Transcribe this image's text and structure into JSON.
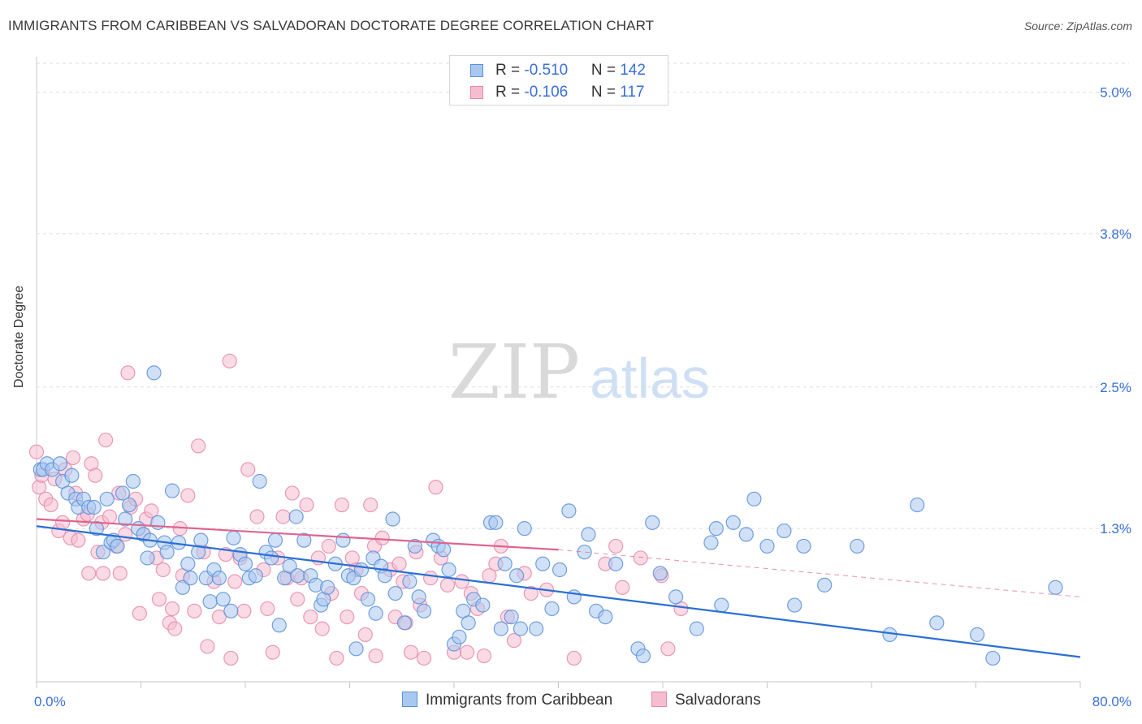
{
  "title": "IMMIGRANTS FROM CARIBBEAN VS SALVADORAN DOCTORATE DEGREE CORRELATION CHART",
  "source": "Source: ZipAtlas.com",
  "watermark": {
    "zip": "ZIP",
    "atlas": "atlas"
  },
  "legend": {
    "rows": [
      {
        "r_label": "R = ",
        "r_value": "-0.510",
        "n_label": "N = ",
        "n_value": "142"
      },
      {
        "r_label": "R = ",
        "r_value": "-0.106",
        "n_label": "N = ",
        "n_value": "117"
      }
    ]
  },
  "bottom_legend": {
    "series1": "Immigrants from Caribbean",
    "series2": "Salvadorans"
  },
  "colors": {
    "blue_fill": "#a9c8f0",
    "blue_stroke": "#5b8fd9",
    "blue_line": "#2a6fd6",
    "pink_fill": "#f6bcd0",
    "pink_stroke": "#e58aaa",
    "pink_line": "#e0648e",
    "axis_label": "#3a6fd8",
    "grid": "#dddddd"
  },
  "chart_data": {
    "type": "scatter",
    "title": "IMMIGRANTS FROM CARIBBEAN VS SALVADORAN DOCTORATE DEGREE CORRELATION CHART",
    "xlabel": "",
    "ylabel": "Doctorate Degree",
    "xlim": [
      0,
      80
    ],
    "ylim": [
      0,
      5.3
    ],
    "x_tick_labels": [
      "0.0%",
      "80.0%"
    ],
    "y_ticks": [
      1.3,
      2.5,
      3.8,
      5.0
    ],
    "y_tick_labels": [
      "1.3%",
      "2.5%",
      "3.8%",
      "5.0%"
    ],
    "series": [
      {
        "name": "Immigrants from Caribbean",
        "trend": {
          "x": [
            0,
            80
          ],
          "y": [
            1.32,
            0.21
          ]
        },
        "points": [
          [
            0.3,
            1.8
          ],
          [
            0.5,
            1.8
          ],
          [
            0.8,
            1.85
          ],
          [
            1.2,
            1.8
          ],
          [
            1.8,
            1.85
          ],
          [
            2,
            1.7
          ],
          [
            2.4,
            1.6
          ],
          [
            2.7,
            1.75
          ],
          [
            3,
            1.55
          ],
          [
            3.2,
            1.48
          ],
          [
            3.6,
            1.55
          ],
          [
            4,
            1.48
          ],
          [
            4.4,
            1.48
          ],
          [
            4.6,
            1.3
          ],
          [
            5.1,
            1.1
          ],
          [
            5.4,
            1.55
          ],
          [
            5.7,
            1.18
          ],
          [
            5.9,
            1.2
          ],
          [
            6.2,
            1.15
          ],
          [
            6.6,
            1.6
          ],
          [
            6.8,
            1.38
          ],
          [
            7.1,
            1.5
          ],
          [
            7.4,
            1.7
          ],
          [
            7.8,
            1.3
          ],
          [
            8.2,
            1.25
          ],
          [
            8.5,
            1.05
          ],
          [
            8.7,
            1.2
          ],
          [
            9,
            2.62
          ],
          [
            9.3,
            1.35
          ],
          [
            9.8,
            1.18
          ],
          [
            10,
            1.1
          ],
          [
            10.4,
            1.62
          ],
          [
            10.9,
            1.18
          ],
          [
            11.2,
            0.8
          ],
          [
            11.6,
            1.0
          ],
          [
            11.8,
            0.88
          ],
          [
            12.4,
            1.1
          ],
          [
            12.6,
            1.2
          ],
          [
            13,
            0.88
          ],
          [
            13.3,
            0.68
          ],
          [
            13.6,
            0.95
          ],
          [
            14,
            0.88
          ],
          [
            14.3,
            0.7
          ],
          [
            14.9,
            0.6
          ],
          [
            15.1,
            1.22
          ],
          [
            15.6,
            1.08
          ],
          [
            16,
            1.0
          ],
          [
            16.3,
            0.88
          ],
          [
            16.8,
            0.9
          ],
          [
            17.1,
            1.7
          ],
          [
            17.6,
            1.1
          ],
          [
            18,
            1.05
          ],
          [
            18.3,
            1.2
          ],
          [
            18.6,
            0.48
          ],
          [
            19,
            0.88
          ],
          [
            19.4,
            0.98
          ],
          [
            19.9,
            1.4
          ],
          [
            20,
            0.9
          ],
          [
            20.5,
            1.2
          ],
          [
            21,
            0.9
          ],
          [
            21.4,
            0.82
          ],
          [
            21.8,
            0.65
          ],
          [
            22,
            0.7
          ],
          [
            22.3,
            0.8
          ],
          [
            22.9,
            1.0
          ],
          [
            23.5,
            1.2
          ],
          [
            23.9,
            0.9
          ],
          [
            24.3,
            0.88
          ],
          [
            24.5,
            0.28
          ],
          [
            24.9,
            0.95
          ],
          [
            25.4,
            0.7
          ],
          [
            25.8,
            1.05
          ],
          [
            26,
            0.58
          ],
          [
            26.4,
            0.98
          ],
          [
            26.7,
            0.9
          ],
          [
            27.3,
            1.38
          ],
          [
            27.5,
            0.75
          ],
          [
            28.2,
            0.5
          ],
          [
            28.6,
            0.85
          ],
          [
            29,
            1.15
          ],
          [
            29.3,
            0.72
          ],
          [
            29.7,
            0.6
          ],
          [
            30.4,
            1.2
          ],
          [
            30.8,
            1.15
          ],
          [
            31.2,
            1.12
          ],
          [
            31.6,
            0.95
          ],
          [
            32,
            0.32
          ],
          [
            32.4,
            0.38
          ],
          [
            32.7,
            0.6
          ],
          [
            33.1,
            0.5
          ],
          [
            33.5,
            0.7
          ],
          [
            34.2,
            0.65
          ],
          [
            34.8,
            1.35
          ],
          [
            35.2,
            1.35
          ],
          [
            35.6,
            0.45
          ],
          [
            35.9,
            1.0
          ],
          [
            36.4,
            0.55
          ],
          [
            36.8,
            0.9
          ],
          [
            37.1,
            0.45
          ],
          [
            37.4,
            1.3
          ],
          [
            38.3,
            0.45
          ],
          [
            38.8,
            1.0
          ],
          [
            39.5,
            0.62
          ],
          [
            40.1,
            0.95
          ],
          [
            40.8,
            1.45
          ],
          [
            41.2,
            0.72
          ],
          [
            42,
            1.1
          ],
          [
            42.3,
            1.25
          ],
          [
            42.9,
            0.6
          ],
          [
            43.6,
            0.55
          ],
          [
            44.4,
            1.0
          ],
          [
            46.1,
            0.28
          ],
          [
            46.5,
            0.22
          ],
          [
            47.2,
            1.35
          ],
          [
            47.8,
            0.92
          ],
          [
            49,
            0.72
          ],
          [
            50.6,
            0.45
          ],
          [
            51.7,
            1.18
          ],
          [
            52.1,
            1.3
          ],
          [
            52.5,
            0.65
          ],
          [
            53.4,
            1.35
          ],
          [
            54.4,
            1.25
          ],
          [
            55,
            1.55
          ],
          [
            56,
            1.15
          ],
          [
            57.3,
            1.28
          ],
          [
            58.1,
            0.65
          ],
          [
            58.8,
            1.15
          ],
          [
            60.4,
            0.82
          ],
          [
            62.9,
            1.15
          ],
          [
            65.4,
            0.4
          ],
          [
            67.5,
            1.5
          ],
          [
            69,
            0.5
          ],
          [
            72.1,
            0.4
          ],
          [
            73.3,
            0.2
          ],
          [
            78.1,
            0.8
          ]
        ]
      },
      {
        "name": "Salvadorans",
        "trend": {
          "x": [
            0,
            40
          ],
          "y": [
            1.38,
            1.12
          ],
          "dashed_x": [
            40,
            80
          ],
          "dashed_y": [
            1.12,
            0.72
          ]
        },
        "points": [
          [
            0,
            1.95
          ],
          [
            0.2,
            1.65
          ],
          [
            0.4,
            1.75
          ],
          [
            0.7,
            1.55
          ],
          [
            1.1,
            1.5
          ],
          [
            1.4,
            1.72
          ],
          [
            1.7,
            1.28
          ],
          [
            2,
            1.35
          ],
          [
            2.2,
            1.8
          ],
          [
            2.6,
            1.22
          ],
          [
            2.8,
            1.9
          ],
          [
            3,
            1.6
          ],
          [
            3.2,
            1.2
          ],
          [
            3.6,
            1.38
          ],
          [
            3.9,
            1.42
          ],
          [
            4,
            0.92
          ],
          [
            4.2,
            1.85
          ],
          [
            4.5,
            1.75
          ],
          [
            4.7,
            1.1
          ],
          [
            5,
            1.35
          ],
          [
            5.1,
            0.92
          ],
          [
            5.3,
            2.05
          ],
          [
            5.6,
            1.4
          ],
          [
            6.1,
            1.15
          ],
          [
            6.3,
            1.6
          ],
          [
            6.4,
            0.92
          ],
          [
            6.8,
            1.25
          ],
          [
            7,
            2.62
          ],
          [
            7.2,
            1.48
          ],
          [
            7.6,
            1.55
          ],
          [
            7.9,
            0.58
          ],
          [
            8.2,
            1.25
          ],
          [
            8.4,
            1.38
          ],
          [
            8.8,
            1.45
          ],
          [
            9.2,
            1.05
          ],
          [
            9.4,
            0.7
          ],
          [
            9.7,
            0.95
          ],
          [
            10.2,
            0.5
          ],
          [
            10.4,
            0.62
          ],
          [
            10.6,
            0.45
          ],
          [
            11,
            1.3
          ],
          [
            11.2,
            0.9
          ],
          [
            11.6,
            1.58
          ],
          [
            12.1,
            0.6
          ],
          [
            12.4,
            2.0
          ],
          [
            12.8,
            1.1
          ],
          [
            13.1,
            0.3
          ],
          [
            13.6,
            0.85
          ],
          [
            14,
            0.55
          ],
          [
            14.5,
            1.08
          ],
          [
            14.8,
            2.72
          ],
          [
            14.9,
            0.2
          ],
          [
            15.2,
            0.85
          ],
          [
            15.6,
            1.05
          ],
          [
            15.9,
            0.6
          ],
          [
            16.2,
            1.8
          ],
          [
            16.9,
            1.4
          ],
          [
            17.4,
            0.95
          ],
          [
            17.7,
            0.62
          ],
          [
            18.1,
            0.25
          ],
          [
            18.5,
            1.05
          ],
          [
            18.9,
            1.4
          ],
          [
            19.2,
            0.88
          ],
          [
            19.6,
            1.6
          ],
          [
            20,
            0.7
          ],
          [
            20.3,
            0.88
          ],
          [
            20.7,
            1.5
          ],
          [
            21,
            0.55
          ],
          [
            21.6,
            1.05
          ],
          [
            21.9,
            0.45
          ],
          [
            22.4,
            1.15
          ],
          [
            22.6,
            0.75
          ],
          [
            23,
            0.2
          ],
          [
            23.4,
            1.5
          ],
          [
            23.8,
            0.55
          ],
          [
            24.2,
            1.05
          ],
          [
            24.5,
            0.95
          ],
          [
            24.9,
            0.75
          ],
          [
            25.2,
            0.4
          ],
          [
            25.6,
            1.5
          ],
          [
            25.9,
            1.15
          ],
          [
            26,
            0.22
          ],
          [
            26.5,
            1.22
          ],
          [
            27.1,
            0.95
          ],
          [
            27.5,
            0.55
          ],
          [
            27.8,
            1.0
          ],
          [
            28.1,
            0.85
          ],
          [
            28.3,
            0.5
          ],
          [
            28.7,
            0.25
          ],
          [
            29.1,
            1.1
          ],
          [
            29.4,
            0.65
          ],
          [
            29.7,
            0.2
          ],
          [
            30.2,
            0.88
          ],
          [
            30.6,
            1.65
          ],
          [
            31,
            1.05
          ],
          [
            31.5,
            0.82
          ],
          [
            32,
            0.25
          ],
          [
            32.6,
            0.85
          ],
          [
            33,
            0.25
          ],
          [
            33.3,
            0.75
          ],
          [
            33.8,
            0.62
          ],
          [
            34.3,
            0.22
          ],
          [
            34.7,
            0.9
          ],
          [
            35.2,
            1.0
          ],
          [
            35.6,
            1.15
          ],
          [
            36.1,
            0.55
          ],
          [
            36.6,
            0.35
          ],
          [
            37.4,
            0.92
          ],
          [
            37.9,
            0.75
          ],
          [
            39.1,
            0.78
          ],
          [
            41.2,
            0.2
          ],
          [
            43.6,
            1.0
          ],
          [
            44.4,
            1.15
          ],
          [
            44.9,
            0.8
          ],
          [
            46.3,
            1.05
          ],
          [
            47.9,
            0.9
          ],
          [
            48.4,
            0.28
          ],
          [
            49.4,
            0.62
          ]
        ]
      }
    ]
  }
}
